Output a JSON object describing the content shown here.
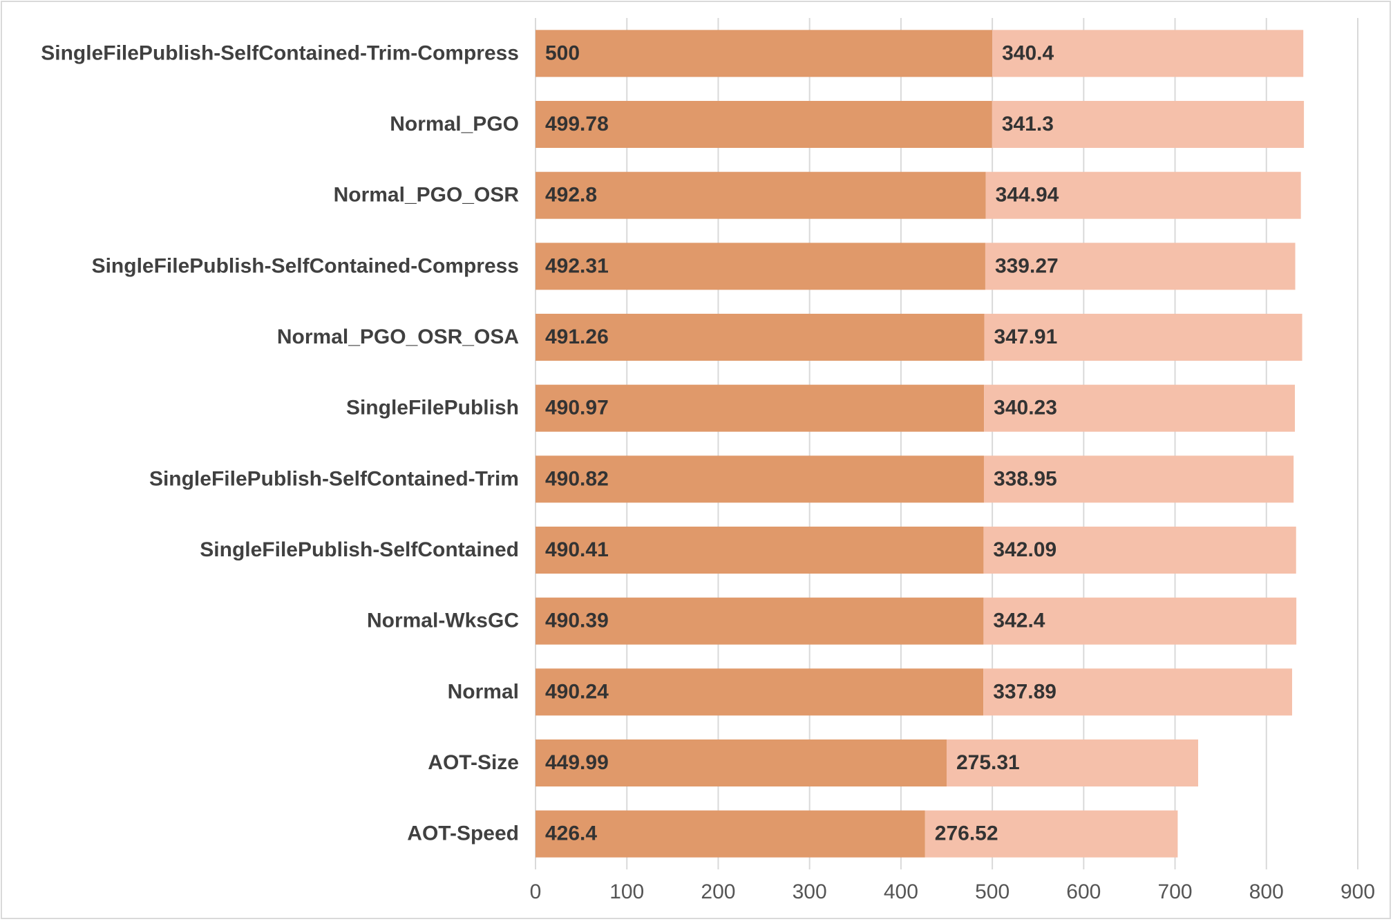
{
  "chart_data": {
    "type": "bar",
    "orientation": "horizontal",
    "stacked": true,
    "title": "",
    "xlabel": "",
    "ylabel": "",
    "xlim": [
      0,
      900
    ],
    "x_ticks": [
      0,
      100,
      200,
      300,
      400,
      500,
      600,
      700,
      800,
      900
    ],
    "grid": true,
    "legend": "none",
    "categories": [
      "SingleFilePublish-SelfContained-Trim-Compress",
      "Normal_PGO",
      "Normal_PGO_OSR",
      "SingleFilePublish-SelfContained-Compress",
      "Normal_PGO_OSR_OSA",
      "SingleFilePublish",
      "SingleFilePublish-SelfContained-Trim",
      "SingleFilePublish-SelfContained",
      "Normal-WksGC",
      "Normal",
      "AOT-Size",
      "AOT-Speed"
    ],
    "series": [
      {
        "name": "series-1",
        "color": "#E0996A",
        "values": [
          500,
          499.78,
          492.8,
          492.31,
          491.26,
          490.97,
          490.82,
          490.41,
          490.39,
          490.24,
          449.99,
          426.4
        ]
      },
      {
        "name": "series-2",
        "color": "#F5C0AA",
        "values": [
          340.4,
          341.3,
          344.94,
          339.27,
          347.91,
          340.23,
          338.95,
          342.09,
          342.4,
          337.89,
          275.31,
          276.52
        ]
      }
    ]
  }
}
